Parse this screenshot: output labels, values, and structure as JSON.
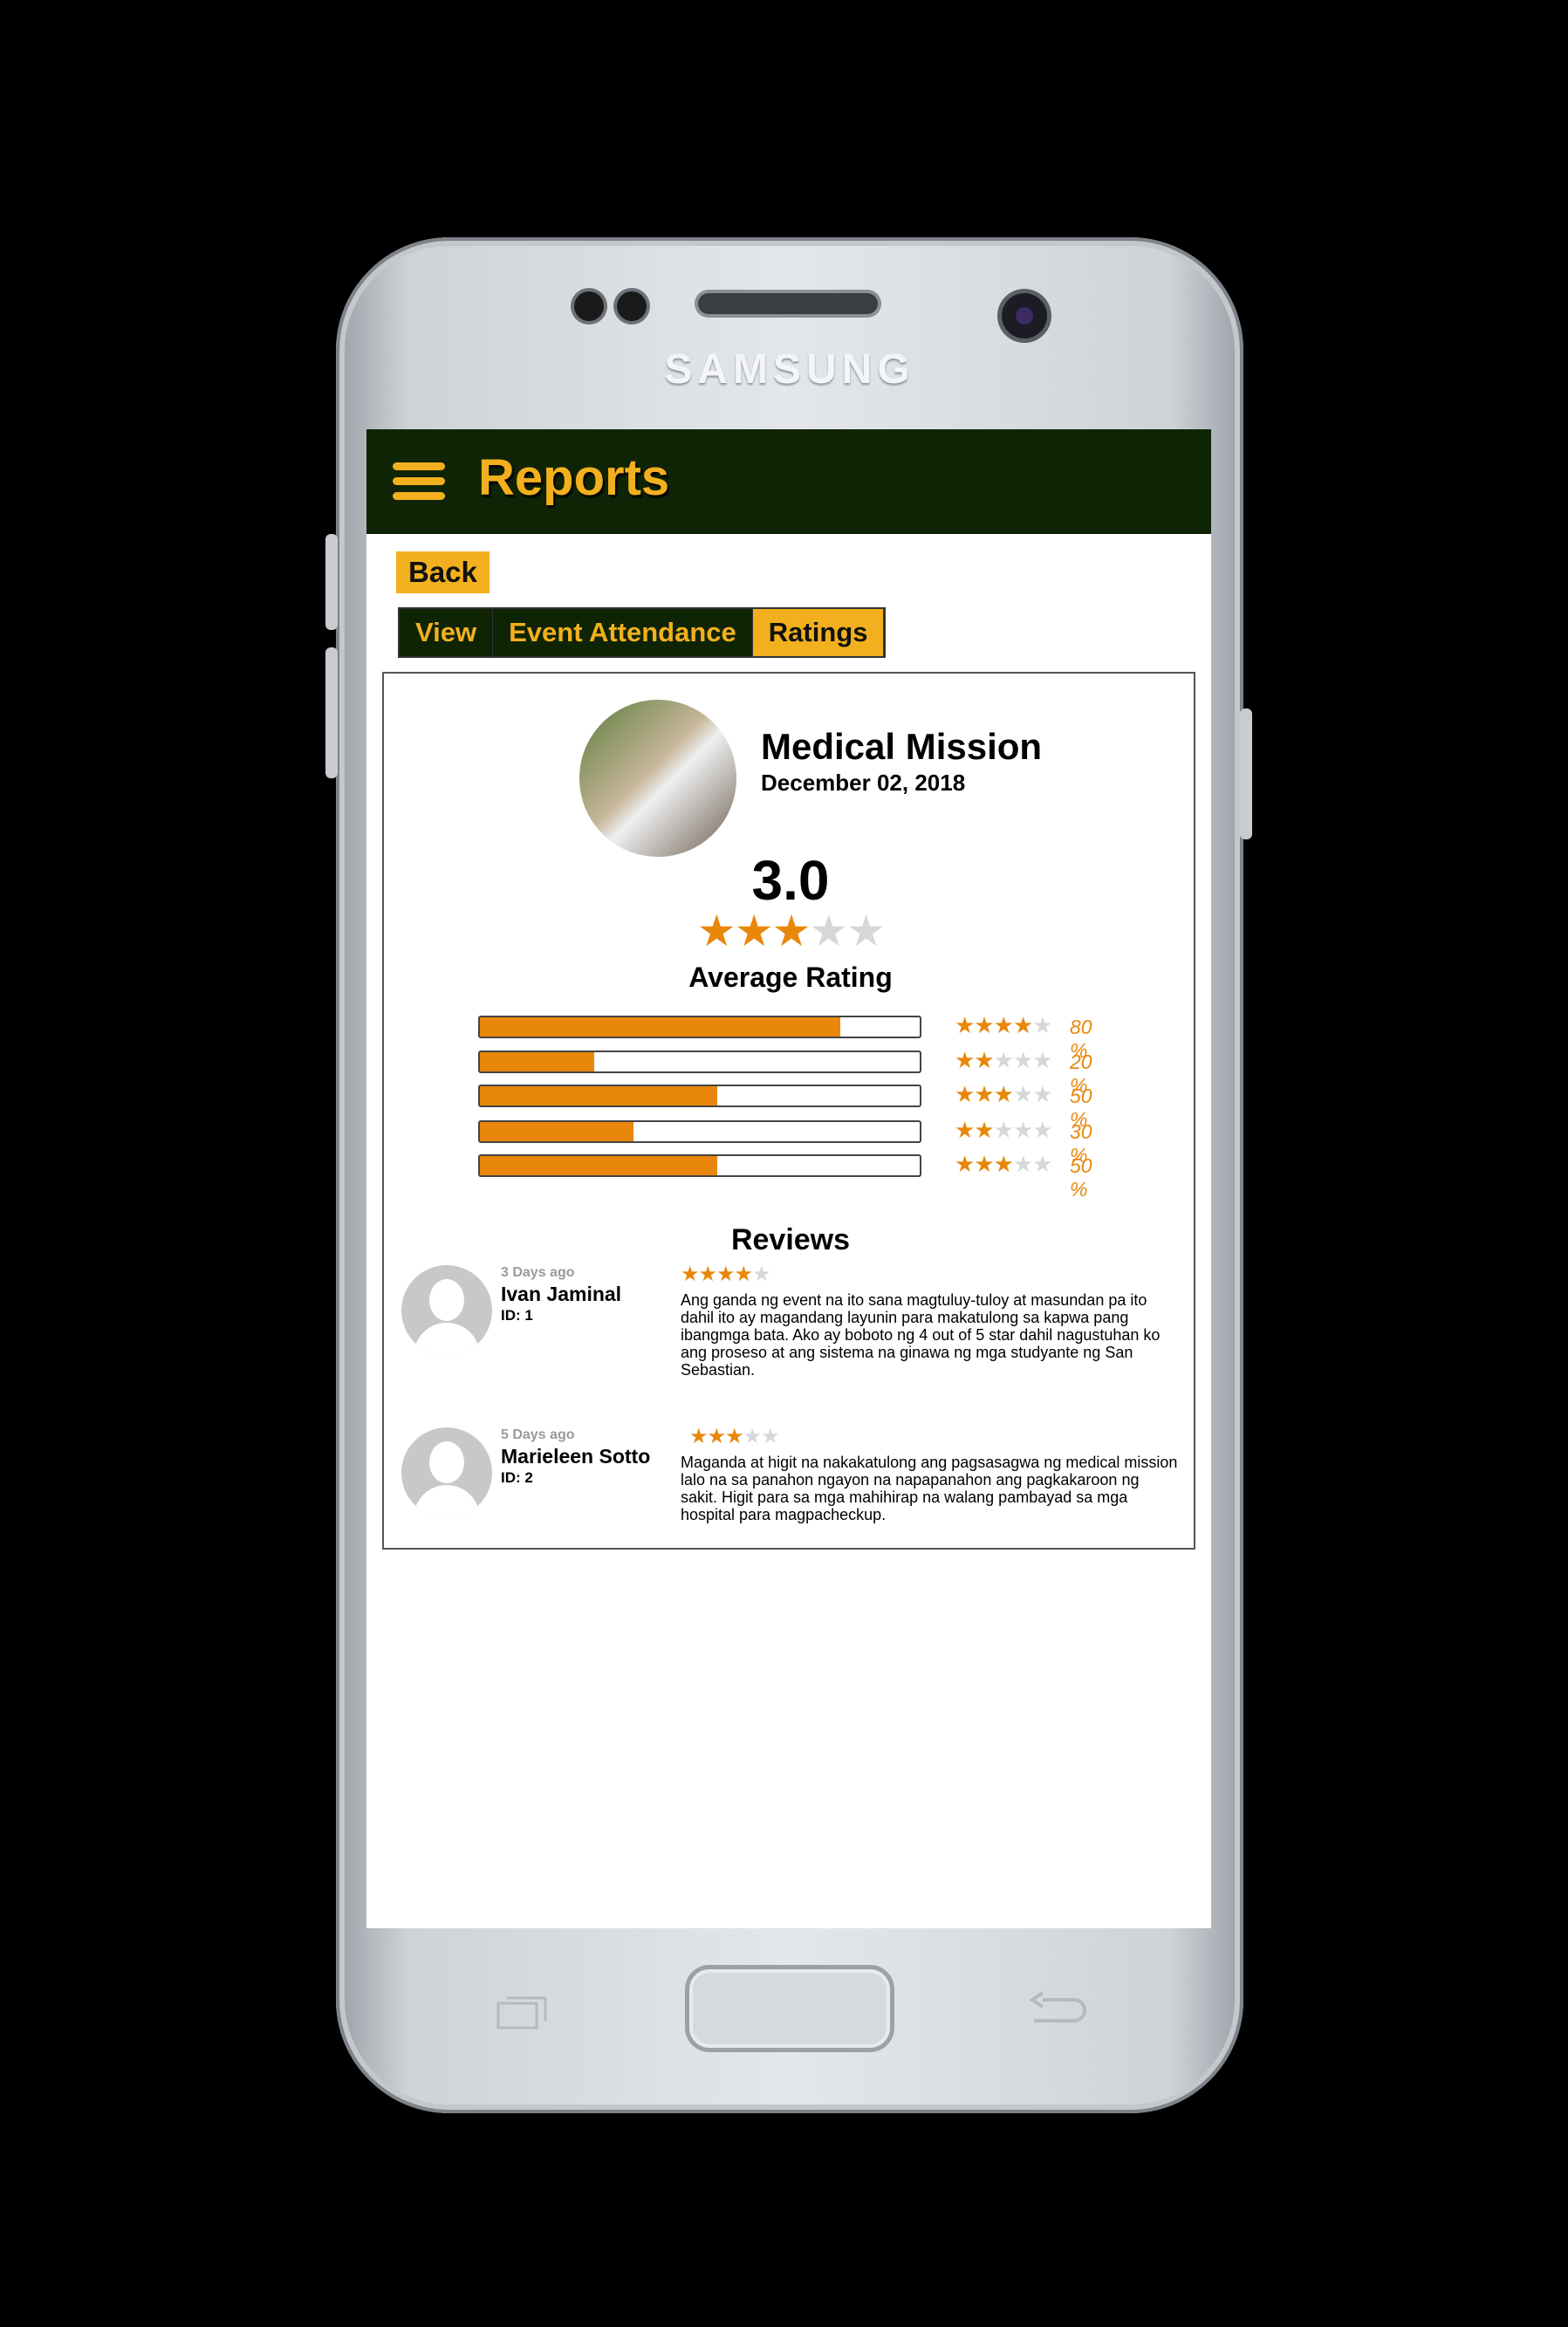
{
  "device": {
    "brand": "SAMSUNG"
  },
  "appbar": {
    "title": "Reports",
    "menu_icon": "hamburger-menu-icon"
  },
  "back_label": "Back",
  "tabs": [
    {
      "label": "View",
      "active": false
    },
    {
      "label": "Event Attendance",
      "active": false
    },
    {
      "label": "Ratings",
      "active": true
    }
  ],
  "event": {
    "name": "Medical Mission",
    "date": "December 02, 2018"
  },
  "rating": {
    "average": "3.0",
    "stars": 3,
    "label": "Average Rating"
  },
  "breakdown": [
    {
      "stars": 4,
      "fill": 0.82,
      "pct": "80 %"
    },
    {
      "stars": 2,
      "fill": 0.26,
      "pct": "20 %"
    },
    {
      "stars": 3,
      "fill": 0.54,
      "pct": "50 %"
    },
    {
      "stars": 2,
      "fill": 0.35,
      "pct": "30 %"
    },
    {
      "stars": 3,
      "fill": 0.54,
      "pct": "50 %"
    }
  ],
  "reviews_title": "Reviews",
  "reviews": [
    {
      "time": "3 Days ago",
      "name": "Ivan Jaminal",
      "id": "ID: 1",
      "stars": 4,
      "text": "Ang ganda ng event na ito sana magtuluy-tuloy at masundan pa ito dahil ito ay magandang layunin para makatulong sa kapwa pang ibangmga bata. Ako ay boboto ng 4 out of 5 star dahil nagustuhan ko ang proseso at ang sistema na ginawa ng mga studyante ng San Sebastian."
    },
    {
      "time": "5 Days ago",
      "name": "Marieleen Sotto",
      "id": "ID: 2",
      "stars": 3,
      "text": "Maganda at higit na nakakatulong ang pagsasagwa ng medical mission lalo na sa panahon ngayon na napapanahon ang pagkakaroon ng sakit. Higit para sa mga mahihirap na walang pambayad sa mga hospital para magpacheckup."
    }
  ],
  "colors": {
    "appbar": "#0f2405",
    "accent": "#f2b01e",
    "star": "#e8870a"
  }
}
